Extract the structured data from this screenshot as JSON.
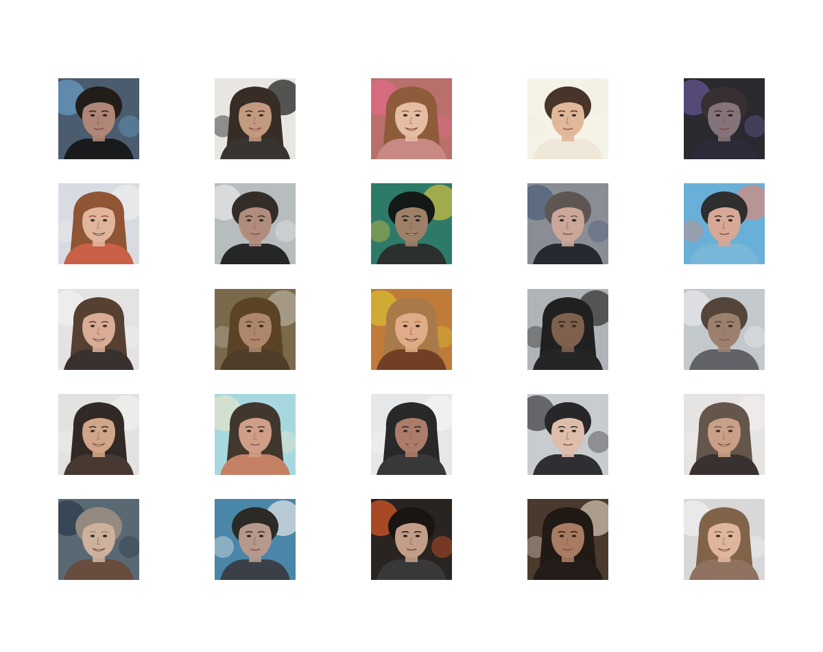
{
  "grid": {
    "rows": 5,
    "columns": 5,
    "subject": "generated-face-samples",
    "tiles": [
      {
        "bg": "#4a5d6e",
        "hair": "#201813",
        "skin": "#b88a78",
        "shirt": "#151515",
        "accent": "#6aa0c8",
        "hair_style": "short",
        "smile": false
      },
      {
        "bg": "#e8e6e2",
        "hair": "#2a1e16",
        "skin": "#c09478",
        "shirt": "#2a2522",
        "accent": "#111111",
        "hair_style": "long",
        "smile": true
      },
      {
        "bg": "#b9706c",
        "hair": "#8a5a38",
        "skin": "#e8c4a8",
        "shirt": "#c98a86",
        "accent": "#e36a8a",
        "hair_style": "long",
        "smile": true
      },
      {
        "bg": "#f6f2e8",
        "hair": "#3a2418",
        "skin": "#e0b494",
        "shirt": "#efe8d8",
        "accent": "#f2efe6",
        "hair_style": "short",
        "smile": false
      },
      {
        "bg": "#2a2a2e",
        "hair": "#3a3032",
        "skin": "#8c7a80",
        "shirt": "#2e2a3a",
        "accent": "#6a5a9a",
        "hair_style": "short",
        "smile": false
      },
      {
        "bg": "#d8dde2",
        "hair": "#8a4a26",
        "skin": "#e2b296",
        "shirt": "#c8563a",
        "accent": "#eeeeee",
        "hair_style": "long",
        "smile": true
      },
      {
        "bg": "#b8bcbf",
        "hair": "#2a201a",
        "skin": "#b08878",
        "shirt": "#1a1a1a",
        "accent": "#e8e8e8",
        "hair_style": "short",
        "smile": false
      },
      {
        "bg": "#2e7a6a",
        "hair": "#111111",
        "skin": "#a8806a",
        "shirt": "#2a2a2a",
        "accent": "#d6c040",
        "hair_style": "short",
        "smile": true
      },
      {
        "bg": "#8a8e96",
        "hair": "#5a524e",
        "skin": "#d0aa98",
        "shirt": "#1e2228",
        "accent": "#4a5e78",
        "hair_style": "short",
        "smile": false
      },
      {
        "bg": "#6ab0d8",
        "hair": "#2a2420",
        "skin": "#e0a890",
        "shirt": "#7ab8d8",
        "accent": "#d88a7a",
        "hair_style": "short",
        "smile": false
      },
      {
        "bg": "#e4e2e2",
        "hair": "#4a3222",
        "skin": "#d8a890",
        "shirt": "#2a2220",
        "accent": "#f2f2f2",
        "hair_style": "long",
        "smile": true
      },
      {
        "bg": "#7a6a4a",
        "hair": "#5a4022",
        "skin": "#b08a6e",
        "shirt": "#4a3a28",
        "accent": "#b8b0a0",
        "hair_style": "long",
        "smile": false
      },
      {
        "bg": "#c07a3a",
        "hair": "#a87a4a",
        "skin": "#e2b08e",
        "shirt": "#6a3a22",
        "accent": "#d8c030",
        "hair_style": "long",
        "smile": true
      },
      {
        "bg": "#b0b4b8",
        "hair": "#141414",
        "skin": "#7a5a44",
        "shirt": "#1a1a1a",
        "accent": "#2a2a2a",
        "hair_style": "long",
        "smile": false
      },
      {
        "bg": "#c4c8cc",
        "hair": "#4a3a2e",
        "skin": "#9a7a66",
        "shirt": "#5a5a60",
        "accent": "#e8e8ec",
        "hair_style": "short",
        "smile": false
      },
      {
        "bg": "#e2e2e0",
        "hair": "#221a16",
        "skin": "#d0a080",
        "shirt": "#3a2a22",
        "accent": "#f0f0f0",
        "hair_style": "long",
        "smile": true
      },
      {
        "bg": "#a8d8e0",
        "hair": "#3a2a20",
        "skin": "#d49a7e",
        "shirt": "#c87a5a",
        "accent": "#e8e4c8",
        "hair_style": "long",
        "smile": false
      },
      {
        "bg": "#e6e8ea",
        "hair": "#181818",
        "skin": "#a87460",
        "shirt": "#2a2a2a",
        "accent": "#f4f4f4",
        "hair_style": "long",
        "smile": true
      },
      {
        "bg": "#c8ccd0",
        "hair": "#1a1a1c",
        "skin": "#e0bca8",
        "shirt": "#222226",
        "accent": "#3a3a40",
        "hair_style": "short",
        "smile": false
      },
      {
        "bg": "#e6e4e2",
        "hair": "#5a4a3e",
        "skin": "#c89a80",
        "shirt": "#2a2220",
        "accent": "#f0eeec",
        "hair_style": "long",
        "smile": true
      },
      {
        "bg": "#5a6a74",
        "hair": "#9a8e82",
        "skin": "#d8b8a0",
        "shirt": "#6a4a3a",
        "accent": "#2a3a4a",
        "hair_style": "short",
        "smile": true
      },
      {
        "bg": "#4a86a8",
        "hair": "#2a221c",
        "skin": "#c09a8a",
        "shirt": "#3a3a40",
        "accent": "#e8e8e8",
        "hair_style": "short",
        "smile": false
      },
      {
        "bg": "#2a2420",
        "hair": "#1a1412",
        "skin": "#d0a890",
        "shirt": "#3a3a3a",
        "accent": "#e25a2a",
        "hair_style": "short",
        "smile": false
      },
      {
        "bg": "#4a3a2e",
        "hair": "#1e1612",
        "skin": "#b08268",
        "shirt": "#201a16",
        "accent": "#d8ccb8",
        "hair_style": "long",
        "smile": false
      },
      {
        "bg": "#d8d8da",
        "hair": "#7a5a3e",
        "skin": "#e0b498",
        "shirt": "#8a6a56",
        "accent": "#f2f2f2",
        "hair_style": "long",
        "smile": true
      }
    ]
  }
}
